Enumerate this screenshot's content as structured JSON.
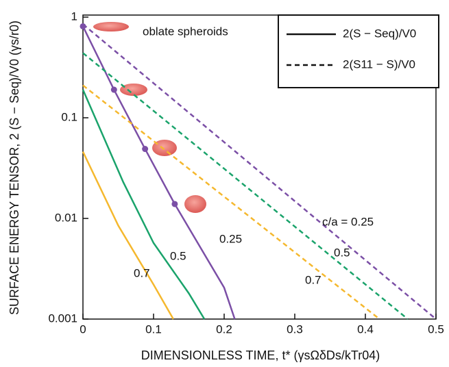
{
  "chart_data": {
    "type": "line",
    "xlabel": "DIMENSIONLESS TIME, t* (γsΩδDs/kTr04)",
    "ylabel": "SURFACE ENERGY TENSOR, 2 (S − Seq)/V0 (γs/r0)",
    "annotation": "oblate spheroids",
    "xlim": [
      0,
      0.5
    ],
    "ylim": [
      0.001,
      1
    ],
    "log_y": true,
    "xticks": [
      0,
      0.1,
      0.2,
      0.3,
      0.4,
      0.5
    ],
    "yticks": [
      0.001,
      0.01,
      0.1,
      1
    ],
    "legend": [
      {
        "label": "2(S − Seq)/V0",
        "dash": false
      },
      {
        "label": "2(S11 − S)/V0",
        "dash": true
      }
    ],
    "series": [
      {
        "label": "0.25",
        "color": "#7b4fa6",
        "dash": false,
        "x": [
          0,
          0.044,
          0.088,
          0.13,
          0.2,
          0.215
        ],
        "values": [
          0.81,
          0.19,
          0.049,
          0.0139,
          0.00205,
          0.001
        ]
      },
      {
        "label": "0.5",
        "color": "#1aa36b",
        "dash": false,
        "x": [
          0,
          0.057,
          0.1,
          0.15,
          0.172
        ],
        "values": [
          0.19,
          0.023,
          0.0057,
          0.0018,
          0.001
        ]
      },
      {
        "label": "0.7",
        "color": "#f5b82e",
        "dash": false,
        "x": [
          0,
          0.05,
          0.1,
          0.128
        ],
        "values": [
          0.046,
          0.0085,
          0.0022,
          0.001
        ]
      },
      {
        "label": "c/a = 0.25",
        "color": "#7b4fa6",
        "dash": true,
        "x": [
          0,
          0.5
        ],
        "values": [
          0.85,
          0.001
        ]
      },
      {
        "label": "0.5",
        "color": "#1aa36b",
        "dash": true,
        "x": [
          0,
          0.46
        ],
        "values": [
          0.44,
          0.001
        ]
      },
      {
        "label": "0.7",
        "color": "#f5b82e",
        "dash": true,
        "x": [
          0,
          0.42
        ],
        "values": [
          0.21,
          0.001
        ]
      }
    ]
  }
}
